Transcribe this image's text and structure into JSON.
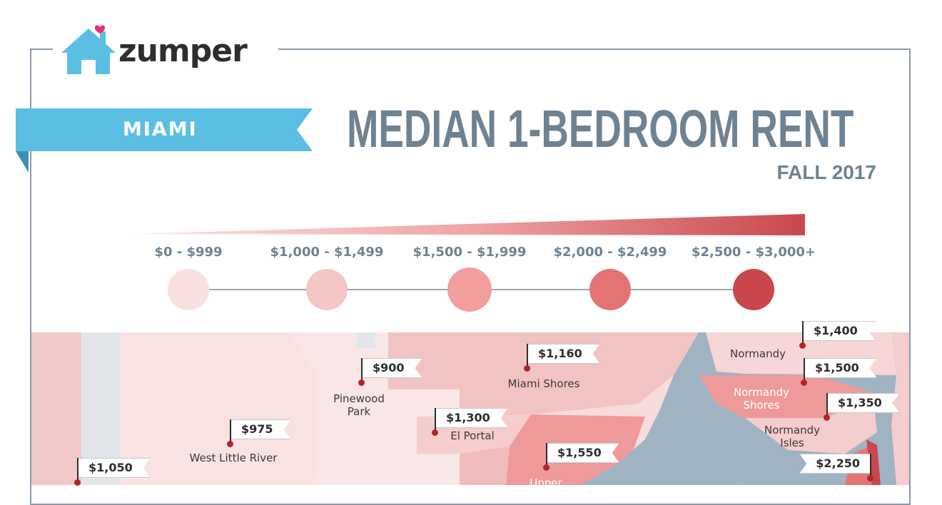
{
  "brand": {
    "name": "zumper"
  },
  "header": {
    "city": "MIAMI",
    "title": "MEDIAN 1-BEDROOM RENT",
    "subtitle": "FALL 2017"
  },
  "colors": {
    "brand_blue": "#5bbfe3",
    "title_gray": "#6f8292",
    "water": "#9fb3c3",
    "heart": "#e5337a"
  },
  "legend": [
    {
      "label": "$0 - $999",
      "color": "#f9e1e1"
    },
    {
      "label": "$1,000 - $1,499",
      "color": "#f5c6c6"
    },
    {
      "label": "$1,500 - $1,999",
      "color": "#f29e9e"
    },
    {
      "label": "$2,000 - $2,499",
      "color": "#e47474"
    },
    {
      "label": "$2,500 - $3,000+",
      "color": "#c9474d"
    }
  ],
  "map": {
    "prices": [
      "$1,400",
      "$1,160",
      "$900",
      "$1,500",
      "$1,350",
      "$1,300",
      "$975",
      "$1,550",
      "$1,050",
      "$2,250"
    ],
    "places": [
      "Normandy",
      "Miami Shores",
      "Pinewood",
      "Park",
      "Normandy",
      "Shores",
      "Normandy",
      "Isles",
      "El Portal",
      "West Little River",
      "Upper"
    ]
  }
}
